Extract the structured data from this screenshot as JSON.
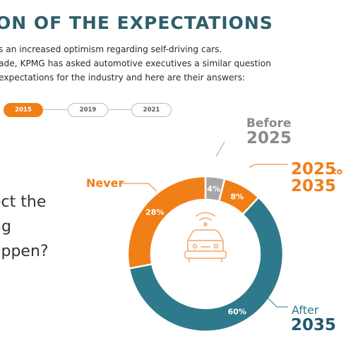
{
  "header": {
    "title": "ON OF THE  EXPECTATIONS",
    "intro_lines": [
      "s an increased optimism regarding self-driving cars.",
      "ade, KPMG has asked automotive executives a similar question",
      "expectations for the industry and here are their answers:"
    ]
  },
  "tabs": [
    {
      "label": "2015",
      "active": true
    },
    {
      "label": "2019",
      "active": false
    },
    {
      "label": "2021",
      "active": false
    }
  ],
  "question": {
    "lines": [
      "ect the",
      "ng",
      "appen?"
    ]
  },
  "colors": {
    "accent": "#f07f18",
    "teal": "#2e7a8c",
    "gray": "#a6a6a6",
    "dark_teal_text": "#1f5a6b",
    "icon_orange": "#f7b98a"
  },
  "center_icon": "self-driving-car-icon",
  "chart_data": {
    "type": "pie",
    "variant": "donut",
    "slices": [
      {
        "label": "Before 2025",
        "value": 4,
        "value_label": "4%",
        "color": "#a6a6a6",
        "label_lines": [
          "Before",
          "2025"
        ]
      },
      {
        "label": "2025 to 2035",
        "value": 8,
        "value_label": "8%",
        "color": "#f07f18",
        "label_lines": [
          "2025",
          "to",
          "2035"
        ]
      },
      {
        "label": "After 2035",
        "value": 60,
        "value_label": "60%",
        "color": "#2e7a8c",
        "label_lines": [
          "After",
          "2035"
        ]
      },
      {
        "label": "Never",
        "value": 28,
        "value_label": "28%",
        "color": "#f07f18",
        "label_lines": [
          "Never"
        ]
      }
    ]
  }
}
